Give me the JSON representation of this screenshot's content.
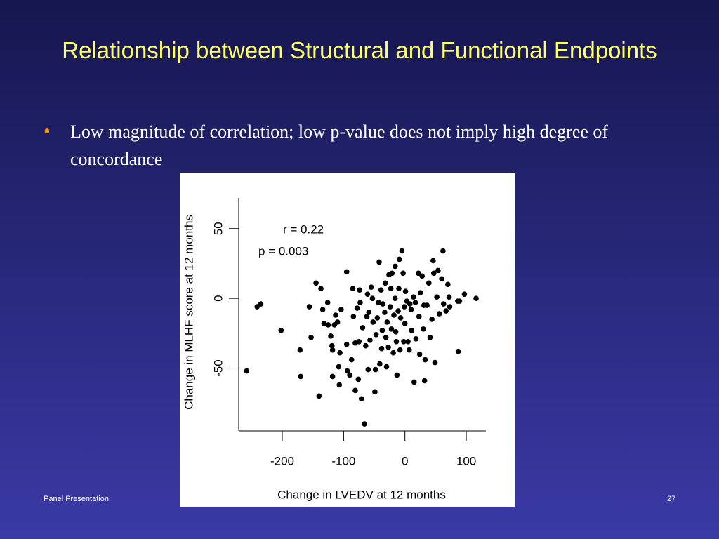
{
  "slide": {
    "title": "Relationship between Structural and Functional Endpoints",
    "bullets": [
      "Low magnitude of correlation; low p-value does not imply high degree of concordance"
    ],
    "footer_left": "Panel Presentation",
    "page_number": "27"
  },
  "chart_data": {
    "type": "scatter",
    "color": "#000000",
    "x_label": "Change in LVEDV at 12 months",
    "y_label": "Change in MLHF score at 12 months",
    "annotations": [
      "r = 0.22",
      "p = 0.003"
    ],
    "xlim": [
      -271,
      132
    ],
    "ylim": [
      -95,
      72
    ],
    "xticks": [
      -200,
      -100,
      0,
      100
    ],
    "yticks": [
      -50,
      0,
      50
    ],
    "grid": false,
    "x": [
      -258,
      -241,
      -235,
      -202,
      -171,
      -170,
      -156,
      -153,
      -145,
      -140,
      -137,
      -134,
      -132,
      -126,
      -125,
      -121,
      -119,
      -118,
      -118,
      -115,
      -113,
      -110,
      -108,
      -107,
      -106,
      -104,
      -95,
      -95,
      -94,
      -90,
      -87,
      -85,
      -84,
      -81,
      -81,
      -78,
      -76,
      -75,
      -74,
      -73,
      -71,
      -69,
      -66,
      -64,
      -62,
      -61,
      -60,
      -59,
      -57,
      -55,
      -53,
      -52,
      -49,
      -48,
      -47,
      -45,
      -43,
      -42,
      -41,
      -39,
      -38,
      -37,
      -36,
      -33,
      -32,
      -31,
      -30,
      -29,
      -27,
      -26,
      -24,
      -23,
      -22,
      -21,
      -19,
      -18,
      -16,
      -16,
      -15,
      -14,
      -13,
      -11,
      -10,
      -9,
      -8,
      -7,
      -5,
      -3,
      -2,
      -1,
      0,
      1,
      3,
      5,
      7,
      8,
      10,
      11,
      14,
      15,
      17,
      18,
      22,
      23,
      24,
      25,
      28,
      30,
      31,
      32,
      33,
      36,
      39,
      41,
      44,
      46,
      47,
      49,
      52,
      54,
      56,
      60,
      62,
      63,
      67,
      70,
      72,
      73,
      86,
      87,
      89,
      97,
      116
    ],
    "values": [
      -52,
      -6,
      -4,
      -23,
      -37,
      -56,
      -6,
      -28,
      11,
      -70,
      7,
      -8,
      -18,
      -3,
      -19,
      -27,
      -34,
      -37,
      -56,
      -19,
      -12,
      -17,
      -49,
      -62,
      -39,
      -8,
      19,
      -33,
      -52,
      -55,
      -44,
      7,
      -13,
      -32,
      -66,
      -7,
      -58,
      -31,
      6,
      -3,
      -72,
      -21,
      -90,
      -34,
      -13,
      3,
      -51,
      -10,
      -30,
      8,
      0,
      -17,
      -67,
      -51,
      -26,
      -14,
      -3,
      26,
      -47,
      6,
      -36,
      -23,
      -4,
      -10,
      11,
      -28,
      -49,
      -17,
      -35,
      17,
      -6,
      7,
      -22,
      18,
      -39,
      -12,
      23,
      0,
      -24,
      -31,
      -55,
      -9,
      7,
      28,
      -37,
      -14,
      34,
      18,
      -31,
      -6,
      -18,
      5,
      -2,
      -31,
      -37,
      -4,
      -8,
      -23,
      1,
      -60,
      -3,
      -29,
      18,
      -13,
      -40,
      4,
      16,
      -22,
      -5,
      -59,
      -44,
      -5,
      11,
      -28,
      -15,
      27,
      18,
      -46,
      1,
      20,
      -11,
      14,
      34,
      -4,
      -9,
      10,
      1,
      -6,
      -2,
      -38,
      -2,
      3,
      0
    ]
  }
}
